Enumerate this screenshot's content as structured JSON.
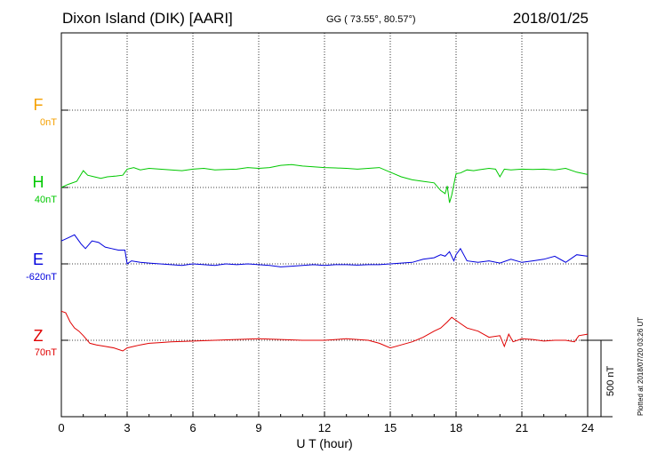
{
  "header": {
    "station": "Dixon Island (DIK)  [AARI]",
    "coords": "GG ( 73.55°,  80.57°)",
    "date": "2018/01/25"
  },
  "channels": [
    {
      "letter": "F",
      "baseline": "0nT",
      "color": "#f5a000"
    },
    {
      "letter": "H",
      "baseline": "40nT",
      "color": "#00c800"
    },
    {
      "letter": "E",
      "baseline": "-620nT",
      "color": "#0000dd"
    },
    {
      "letter": "Z",
      "baseline": "70nT",
      "color": "#e00000"
    }
  ],
  "xaxis": {
    "label": "U T (hour)",
    "ticks": [
      "0",
      "3",
      "6",
      "9",
      "12",
      "15",
      "18",
      "21",
      "24"
    ]
  },
  "scale": {
    "label": "500 nT"
  },
  "footer": {
    "plotted": "Plotted at 2018/07/20 03:26 UT"
  },
  "chart_data": {
    "type": "line",
    "xlabel": "U T (hour)",
    "xlim": [
      0,
      24
    ],
    "series": [
      {
        "name": "H",
        "color": "#00c800",
        "x": [
          0,
          0.3,
          0.7,
          1.0,
          1.2,
          1.5,
          1.8,
          2.1,
          2.5,
          2.8,
          3.0,
          3.3,
          3.6,
          4.0,
          4.5,
          5.0,
          5.5,
          6.0,
          6.5,
          7.0,
          7.5,
          8.0,
          8.5,
          9.0,
          9.5,
          10.0,
          10.5,
          11.0,
          11.5,
          12.0,
          12.5,
          13.0,
          13.5,
          14.0,
          14.5,
          15.0,
          15.5,
          16.0,
          16.5,
          17.0,
          17.3,
          17.5,
          17.6,
          17.7,
          17.8,
          17.9,
          18.0,
          18.2,
          18.5,
          18.8,
          19.0,
          19.5,
          19.8,
          20.0,
          20.2,
          20.5,
          21.0,
          21.5,
          22.0,
          22.5,
          23.0,
          23.5,
          24.0
        ],
        "y": [
          0,
          20,
          40,
          110,
          80,
          70,
          60,
          70,
          75,
          80,
          120,
          130,
          115,
          125,
          120,
          115,
          110,
          120,
          125,
          115,
          118,
          120,
          130,
          125,
          130,
          145,
          150,
          140,
          135,
          130,
          128,
          125,
          120,
          125,
          130,
          100,
          70,
          50,
          40,
          30,
          -20,
          -40,
          10,
          -100,
          -50,
          20,
          90,
          95,
          115,
          110,
          115,
          125,
          120,
          70,
          120,
          115,
          120,
          118,
          120,
          115,
          125,
          100,
          85
        ]
      },
      {
        "name": "E",
        "color": "#0000dd",
        "x": [
          0,
          0.3,
          0.6,
          0.9,
          1.1,
          1.4,
          1.7,
          2.0,
          2.3,
          2.6,
          2.9,
          3.0,
          3.2,
          3.6,
          4.0,
          4.5,
          5.0,
          5.5,
          6.0,
          6.5,
          7.0,
          7.5,
          8.0,
          8.5,
          9.0,
          9.5,
          10.0,
          10.5,
          11.0,
          11.5,
          12.0,
          12.5,
          13.0,
          13.5,
          14.0,
          14.5,
          15.0,
          15.5,
          16.0,
          16.5,
          17.0,
          17.3,
          17.5,
          17.7,
          17.9,
          18.0,
          18.2,
          18.5,
          19.0,
          19.5,
          20.0,
          20.5,
          21.0,
          21.5,
          22.0,
          22.5,
          23.0,
          23.5,
          24.0
        ],
        "y": [
          150,
          170,
          190,
          130,
          100,
          150,
          140,
          110,
          100,
          90,
          90,
          0,
          20,
          10,
          5,
          0,
          -5,
          -10,
          0,
          -5,
          -10,
          0,
          -5,
          0,
          -5,
          -10,
          -20,
          -15,
          -10,
          -5,
          -10,
          -5,
          -5,
          -8,
          -5,
          -5,
          0,
          5,
          10,
          30,
          40,
          60,
          50,
          80,
          20,
          60,
          100,
          20,
          10,
          20,
          5,
          30,
          10,
          20,
          30,
          50,
          10,
          60,
          50
        ]
      },
      {
        "name": "Z",
        "color": "#e00000",
        "x": [
          0,
          0.2,
          0.4,
          0.6,
          0.8,
          1.0,
          1.3,
          1.6,
          2.0,
          2.4,
          2.8,
          3.0,
          3.3,
          3.6,
          4.0,
          4.5,
          5.0,
          6.0,
          7.0,
          8.0,
          9.0,
          10.0,
          11.0,
          12.0,
          13.0,
          14.0,
          14.5,
          15.0,
          15.5,
          16.0,
          16.5,
          17.0,
          17.3,
          17.6,
          17.8,
          18.0,
          18.2,
          18.5,
          19.0,
          19.5,
          20.0,
          20.2,
          20.4,
          20.6,
          21.0,
          21.5,
          22.0,
          22.5,
          23.0,
          23.4,
          23.6,
          24.0
        ],
        "y": [
          190,
          180,
          120,
          80,
          60,
          30,
          -20,
          -30,
          -40,
          -50,
          -70,
          -50,
          -40,
          -30,
          -20,
          -15,
          -10,
          -5,
          0,
          5,
          10,
          5,
          0,
          0,
          10,
          0,
          -20,
          -50,
          -30,
          -10,
          20,
          60,
          80,
          120,
          150,
          130,
          110,
          80,
          60,
          20,
          30,
          -40,
          40,
          -10,
          10,
          5,
          -5,
          0,
          0,
          -10,
          30,
          40
        ]
      }
    ],
    "baselines": {
      "F": 0,
      "H": 40,
      "E": -620,
      "Z": 70
    },
    "scale_bar": "500 nT"
  }
}
